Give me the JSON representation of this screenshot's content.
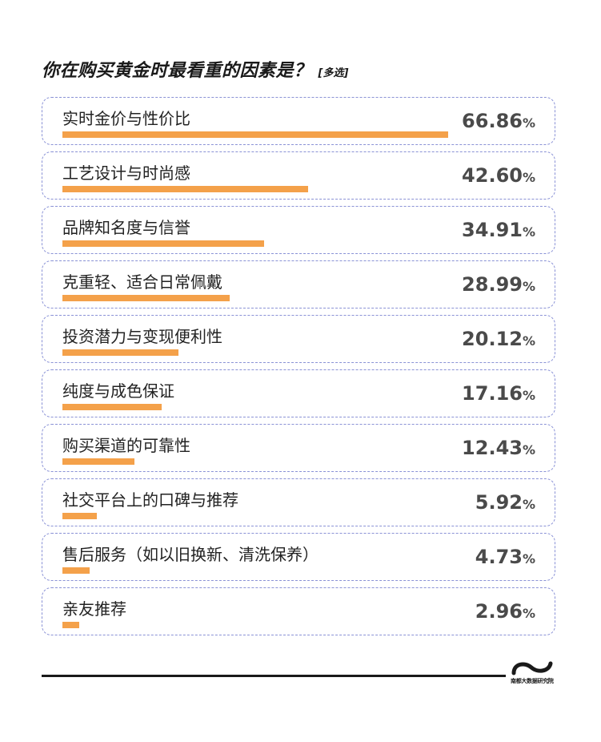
{
  "title": "你在购买黄金时最看重的因素是？",
  "title_note": "[多选]",
  "percent_sign": "%",
  "bar_color": "#f4a14a",
  "border_color": "#8a92d6",
  "logo": {
    "text": "南都大数据研究院"
  },
  "chart_data": {
    "type": "bar",
    "orientation": "horizontal",
    "title": "你在购买黄金时最看重的因素是？",
    "categories": [
      "实时金价与性价比",
      "工艺设计与时尚感",
      "品牌知名度与信誉",
      "克重轻、适合日常佩戴",
      "投资潜力与变现便利性",
      "纯度与成色保证",
      "购买渠道的可靠性",
      "社交平台上的口碑与推荐",
      "售后服务（如以旧换新、清洗保养）",
      "亲友推荐"
    ],
    "values": [
      66.86,
      42.6,
      34.91,
      28.99,
      20.12,
      17.16,
      12.43,
      5.92,
      4.73,
      2.96
    ],
    "value_labels": [
      "66.86",
      "42.60",
      "34.91",
      "28.99",
      "20.12",
      "17.16",
      "12.43",
      "5.92",
      "4.73",
      "2.96"
    ],
    "unit": "%",
    "xlim": [
      0,
      66.86
    ]
  }
}
